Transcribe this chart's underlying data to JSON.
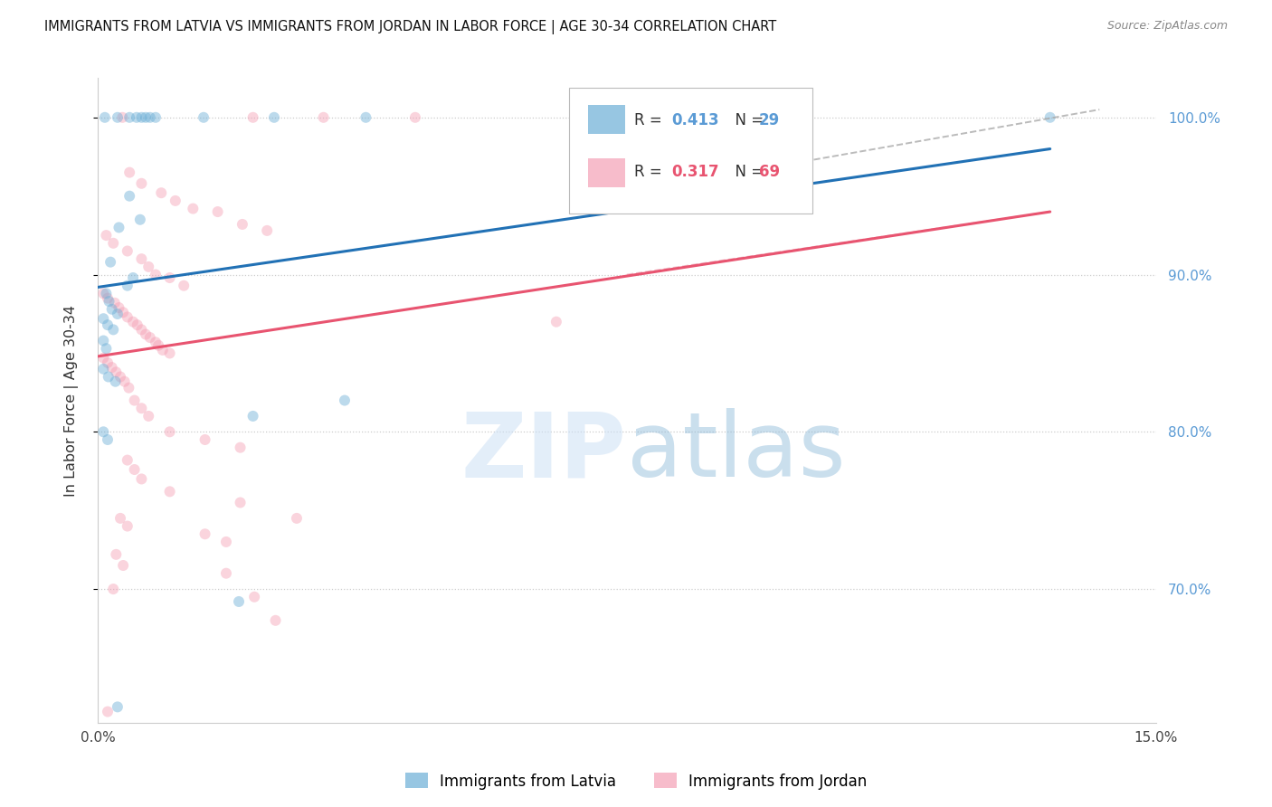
{
  "title": "IMMIGRANTS FROM LATVIA VS IMMIGRANTS FROM JORDAN IN LABOR FORCE | AGE 30-34 CORRELATION CHART",
  "source": "Source: ZipAtlas.com",
  "ylabel": "In Labor Force | Age 30-34",
  "x_min": 0.0,
  "x_max": 15.0,
  "y_min": 0.615,
  "y_max": 1.025,
  "y_ticks": [
    0.7,
    0.8,
    0.9,
    1.0
  ],
  "y_tick_labels": [
    "70.0%",
    "80.0%",
    "90.0%",
    "100.0%"
  ],
  "legend_entries": [
    {
      "label": "Immigrants from Latvia",
      "R": 0.413,
      "N": 29,
      "color": "#6baed6"
    },
    {
      "label": "Immigrants from Jordan",
      "R": 0.317,
      "N": 69,
      "color": "#f4a0b5"
    }
  ],
  "latvia_dots": [
    [
      0.1,
      1.0
    ],
    [
      0.28,
      1.0
    ],
    [
      0.45,
      1.0
    ],
    [
      0.55,
      1.0
    ],
    [
      0.62,
      1.0
    ],
    [
      0.68,
      1.0
    ],
    [
      0.74,
      1.0
    ],
    [
      0.82,
      1.0
    ],
    [
      1.5,
      1.0
    ],
    [
      2.5,
      1.0
    ],
    [
      3.8,
      1.0
    ],
    [
      13.5,
      1.0
    ],
    [
      0.45,
      0.95
    ],
    [
      0.6,
      0.935
    ],
    [
      0.3,
      0.93
    ],
    [
      0.18,
      0.908
    ],
    [
      0.5,
      0.898
    ],
    [
      0.42,
      0.893
    ],
    [
      0.12,
      0.888
    ],
    [
      0.16,
      0.883
    ],
    [
      0.2,
      0.878
    ],
    [
      0.28,
      0.875
    ],
    [
      0.08,
      0.872
    ],
    [
      0.14,
      0.868
    ],
    [
      0.22,
      0.865
    ],
    [
      0.08,
      0.858
    ],
    [
      0.12,
      0.853
    ],
    [
      0.08,
      0.84
    ],
    [
      0.15,
      0.835
    ],
    [
      0.25,
      0.832
    ],
    [
      3.5,
      0.82
    ],
    [
      2.2,
      0.81
    ],
    [
      0.08,
      0.8
    ],
    [
      0.14,
      0.795
    ],
    [
      2.0,
      0.692
    ],
    [
      0.28,
      0.625
    ]
  ],
  "jordan_dots": [
    [
      0.35,
      1.0
    ],
    [
      2.2,
      1.0
    ],
    [
      3.2,
      1.0
    ],
    [
      4.5,
      1.0
    ],
    [
      0.45,
      0.965
    ],
    [
      0.62,
      0.958
    ],
    [
      0.9,
      0.952
    ],
    [
      1.1,
      0.947
    ],
    [
      1.35,
      0.942
    ],
    [
      1.7,
      0.94
    ],
    [
      2.05,
      0.932
    ],
    [
      2.4,
      0.928
    ],
    [
      0.12,
      0.925
    ],
    [
      0.22,
      0.92
    ],
    [
      0.42,
      0.915
    ],
    [
      0.62,
      0.91
    ],
    [
      0.72,
      0.905
    ],
    [
      0.82,
      0.9
    ],
    [
      1.02,
      0.898
    ],
    [
      1.22,
      0.893
    ],
    [
      0.08,
      0.888
    ],
    [
      0.14,
      0.885
    ],
    [
      0.24,
      0.882
    ],
    [
      0.3,
      0.879
    ],
    [
      0.36,
      0.876
    ],
    [
      0.42,
      0.873
    ],
    [
      0.5,
      0.87
    ],
    [
      0.56,
      0.868
    ],
    [
      0.62,
      0.865
    ],
    [
      0.68,
      0.862
    ],
    [
      0.74,
      0.86
    ],
    [
      0.82,
      0.857
    ],
    [
      0.86,
      0.855
    ],
    [
      0.92,
      0.852
    ],
    [
      1.02,
      0.85
    ],
    [
      0.08,
      0.847
    ],
    [
      0.14,
      0.844
    ],
    [
      0.2,
      0.841
    ],
    [
      0.26,
      0.838
    ],
    [
      0.32,
      0.835
    ],
    [
      0.38,
      0.832
    ],
    [
      0.44,
      0.828
    ],
    [
      0.52,
      0.82
    ],
    [
      0.62,
      0.815
    ],
    [
      0.72,
      0.81
    ],
    [
      1.02,
      0.8
    ],
    [
      1.52,
      0.795
    ],
    [
      2.02,
      0.79
    ],
    [
      0.42,
      0.782
    ],
    [
      0.52,
      0.776
    ],
    [
      0.62,
      0.77
    ],
    [
      1.02,
      0.762
    ],
    [
      2.02,
      0.755
    ],
    [
      0.32,
      0.745
    ],
    [
      0.42,
      0.74
    ],
    [
      1.52,
      0.735
    ],
    [
      1.82,
      0.73
    ],
    [
      0.26,
      0.722
    ],
    [
      0.36,
      0.715
    ],
    [
      2.82,
      0.745
    ],
    [
      1.82,
      0.71
    ],
    [
      0.22,
      0.7
    ],
    [
      2.22,
      0.695
    ],
    [
      2.52,
      0.68
    ],
    [
      6.5,
      0.87
    ],
    [
      0.14,
      0.622
    ]
  ],
  "latvia_line_x": [
    0.0,
    13.5
  ],
  "latvia_line_y": [
    0.892,
    0.98
  ],
  "jordan_line_x": [
    0.0,
    13.5
  ],
  "jordan_line_y": [
    0.848,
    0.94
  ],
  "dashed_line_x": [
    9.5,
    14.2
  ],
  "dashed_line_y": [
    0.968,
    1.005
  ],
  "dashed_line2_x": [
    7.5,
    13.5
  ],
  "dashed_line2_y": [
    0.9,
    0.94
  ],
  "background_color": "#ffffff",
  "dot_size": 75,
  "dot_alpha": 0.45,
  "grid_color": "#cccccc",
  "tick_label_color_right": "#5b9bd5",
  "tick_label_color_bottom": "#444444"
}
